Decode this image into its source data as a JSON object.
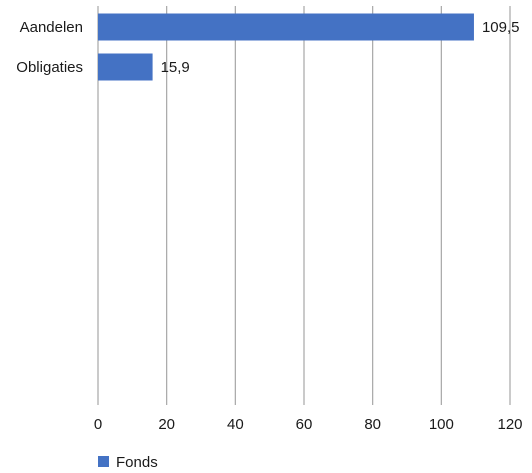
{
  "chart_data": {
    "type": "bar",
    "orientation": "horizontal",
    "categories": [
      "Aandelen",
      "Obligaties"
    ],
    "series": [
      {
        "name": "Fonds",
        "values": [
          109.5,
          15.9
        ],
        "value_labels": [
          "109,5",
          "15,9"
        ],
        "color": "#4472c4"
      }
    ],
    "xlim": [
      0,
      120
    ],
    "x_ticks": [
      0,
      20,
      40,
      60,
      80,
      100,
      120
    ],
    "grid": true,
    "legend_position": "bottom-left"
  }
}
